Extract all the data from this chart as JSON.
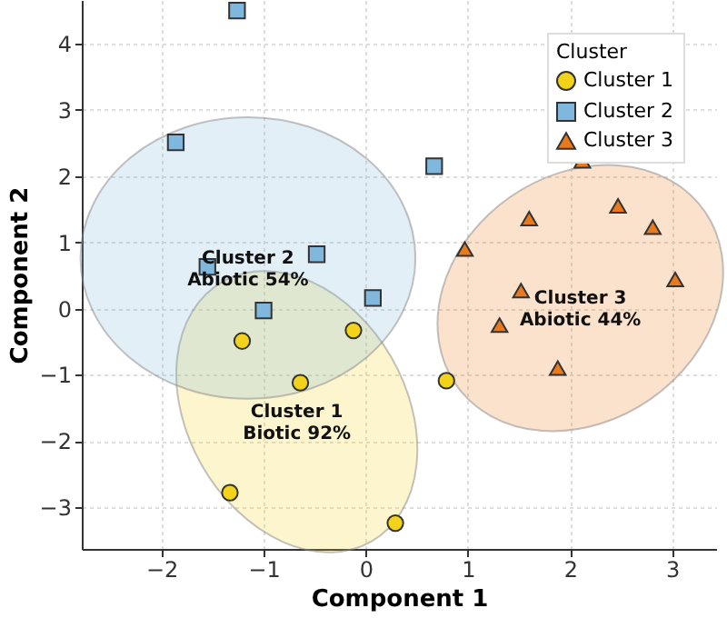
{
  "chart_data": {
    "type": "scatter",
    "xlabel": "Component 1",
    "ylabel": "Component 2",
    "legend_title": "Cluster",
    "legend": "top right",
    "grid": true,
    "xlim": [
      -2.78,
      3.43
    ],
    "ylim": [
      -3.63,
      4.66
    ],
    "xticks": [
      -2,
      -1,
      0,
      1,
      2,
      3
    ],
    "yticks": [
      -3,
      -2,
      -1,
      0,
      1,
      2,
      3,
      4
    ],
    "series": [
      {
        "name": "Cluster 1",
        "color": "#f2d21b",
        "marker": "circle",
        "x": [
          -1.21,
          -0.64,
          -0.12,
          0.79,
          -1.33,
          0.29
        ],
        "values": [
          -0.49,
          -1.12,
          -0.33,
          -1.09,
          -2.78,
          -3.24
        ]
      },
      {
        "name": "Cluster 2",
        "color": "#7fb8dc",
        "marker": "square",
        "x": [
          -1.26,
          -1.86,
          -1.55,
          -1.0,
          -0.48,
          0.07,
          0.67
        ],
        "values": [
          4.5,
          2.51,
          0.63,
          -0.03,
          0.82,
          0.16,
          2.15
        ]
      },
      {
        "name": "Cluster 3",
        "color": "#e8791c",
        "marker": "triangle",
        "x": [
          2.12,
          1.6,
          0.97,
          2.47,
          2.81,
          3.03,
          1.52,
          1.31,
          1.88
        ],
        "values": [
          2.23,
          1.36,
          0.9,
          1.55,
          1.23,
          0.44,
          0.27,
          -0.25,
          -0.9
        ]
      }
    ],
    "annotations": [
      "Cluster 1\nBiotic 92%",
      "Cluster 2\nAbiotic 54%",
      "Cluster 3\nAbiotic 44%"
    ]
  }
}
